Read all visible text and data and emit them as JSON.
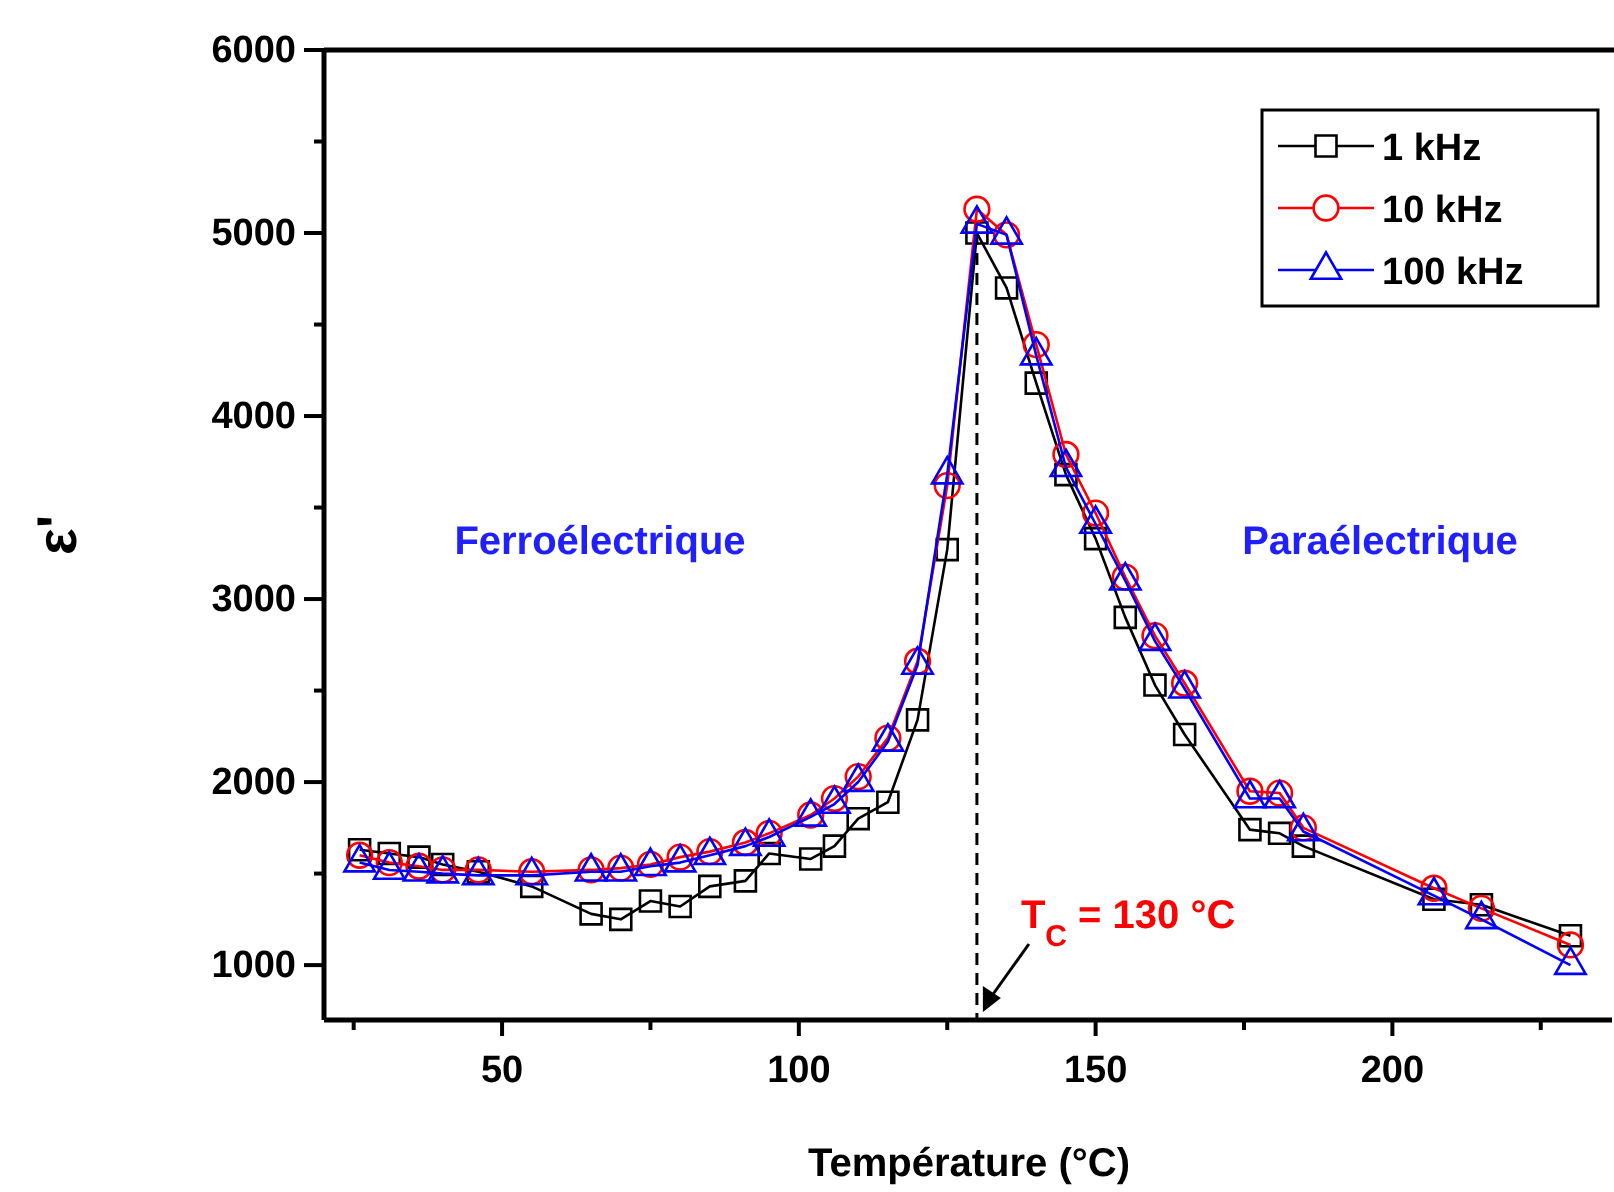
{
  "chart_data": {
    "type": "line",
    "xlabel": "Température (°C)",
    "ylabel": "ε'",
    "x": [
      26,
      31,
      36,
      40,
      46,
      55,
      65,
      70,
      75,
      80,
      85,
      91,
      95,
      102,
      106,
      110,
      115,
      120,
      125,
      130,
      135,
      140,
      145,
      150,
      155,
      160,
      165,
      176,
      181,
      185,
      207,
      215,
      230
    ],
    "series": [
      {
        "name": "1 kHz",
        "color": "#000000",
        "marker": "square",
        "values": [
          1630,
          1610,
          1590,
          1550,
          1510,
          1430,
          1280,
          1250,
          1350,
          1320,
          1430,
          1460,
          1610,
          1580,
          1650,
          1800,
          1890,
          2340,
          3270,
          5000,
          4700,
          4180,
          3680,
          3330,
          2900,
          2530,
          2260,
          1740,
          1720,
          1650,
          1360,
          1330,
          1160
        ]
      },
      {
        "name": "10 kHz",
        "color": "#ff0000",
        "marker": "circle",
        "values": [
          1600,
          1560,
          1540,
          1520,
          1520,
          1510,
          1520,
          1530,
          1550,
          1590,
          1620,
          1670,
          1720,
          1820,
          1910,
          2030,
          2240,
          2660,
          3620,
          5130,
          4990,
          4390,
          3790,
          3470,
          3120,
          2800,
          2540,
          1950,
          1940,
          1750,
          1420,
          1310,
          1110
        ]
      },
      {
        "name": "100 kHz",
        "color": "#0000ff",
        "marker": "triangle",
        "values": [
          1560,
          1520,
          1510,
          1500,
          1490,
          1490,
          1510,
          1510,
          1540,
          1560,
          1600,
          1650,
          1700,
          1810,
          1880,
          2000,
          2220,
          2640,
          3680,
          5050,
          4990,
          4330,
          3720,
          3410,
          3100,
          2770,
          2510,
          1910,
          1910,
          1730,
          1380,
          1250,
          1000
        ]
      }
    ],
    "xlim": [
      20,
      237
    ],
    "xticks": [
      {
        "value": 25,
        "label": null
      },
      50,
      {
        "value": 75,
        "label": null
      },
      100,
      {
        "value": 125,
        "label": null
      },
      150,
      {
        "value": 175,
        "label": null
      },
      200,
      {
        "value": 225,
        "label": null
      }
    ],
    "ylim": [
      700,
      6000
    ],
    "yticks": [
      1000,
      {
        "value": 1500,
        "label": null
      },
      2000,
      {
        "value": 2500,
        "label": null
      },
      3000,
      {
        "value": 3500,
        "label": null
      },
      4000,
      {
        "value": 4500,
        "label": null
      },
      5000,
      {
        "value": 5500,
        "label": null
      },
      6000
    ],
    "ref_lines": [
      {
        "axis": "x",
        "value": 130,
        "label": "T$_{C}$ = 130 °C",
        "color": "#000000",
        "line_style": "dashed"
      }
    ],
    "annotations": [
      "Ferroélectrique",
      "Paraélectrique"
    ],
    "legend": "top right",
    "grid": false
  }
}
